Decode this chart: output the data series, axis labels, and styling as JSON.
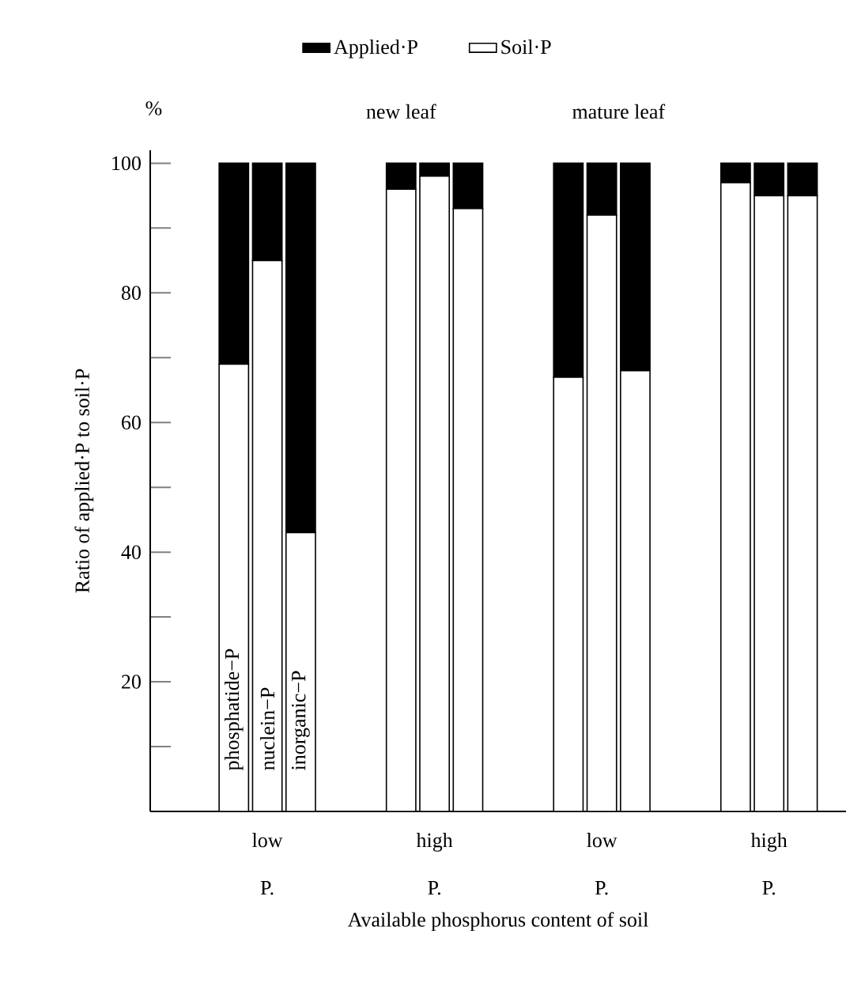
{
  "chart_data": {
    "type": "bar",
    "stacked": true,
    "xlabel": "Available phosphorus content of soil",
    "ylabel": "Ratio of applied·P to soil·P",
    "annotations": [
      "%",
      "new leaf",
      "mature leaf",
      "phosphatide−P",
      "nuclein−P",
      "inorganic−P"
    ],
    "categories": [
      null,
      "low P.",
      null,
      null,
      "high P.",
      null,
      null,
      "low P.",
      null,
      null,
      "high P.",
      null
    ],
    "series": [
      {
        "name": "Soil·P",
        "color": "#ffffff",
        "values": [
          69,
          85,
          43,
          96,
          98,
          93,
          67,
          92,
          68,
          97,
          95,
          95
        ]
      },
      {
        "name": "Applied·P",
        "color": "#000000",
        "values": [
          31,
          15,
          57,
          4,
          2,
          7,
          33,
          8,
          32,
          3,
          5,
          5
        ]
      }
    ],
    "ylim": [
      0,
      102
    ],
    "yticks": [
      {
        "value": 10,
        "label": null
      },
      20,
      {
        "value": 30,
        "label": null
      },
      40,
      {
        "value": 50,
        "label": null
      },
      60,
      {
        "value": 70,
        "label": null
      },
      80,
      {
        "value": 90,
        "label": null
      },
      100
    ],
    "grid": false,
    "legend": "top"
  }
}
